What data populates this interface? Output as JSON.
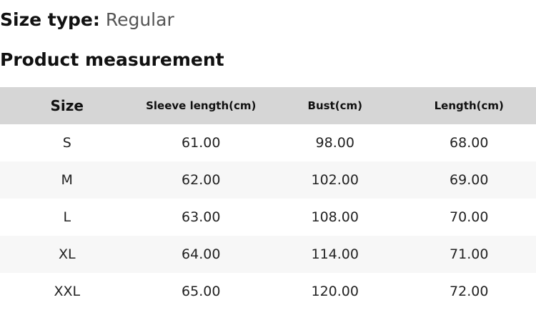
{
  "size_type": {
    "label": "Size type:",
    "value": "Regular"
  },
  "section_title": "Product measurement",
  "table": {
    "headers": [
      "Size",
      "Sleeve length(cm)",
      "Bust(cm)",
      "Length(cm)"
    ],
    "rows": [
      [
        "S",
        "61.00",
        "98.00",
        "68.00"
      ],
      [
        "M",
        "62.00",
        "102.00",
        "69.00"
      ],
      [
        "L",
        "63.00",
        "108.00",
        "70.00"
      ],
      [
        "XL",
        "64.00",
        "114.00",
        "71.00"
      ],
      [
        "XXL",
        "65.00",
        "120.00",
        "72.00"
      ]
    ]
  }
}
